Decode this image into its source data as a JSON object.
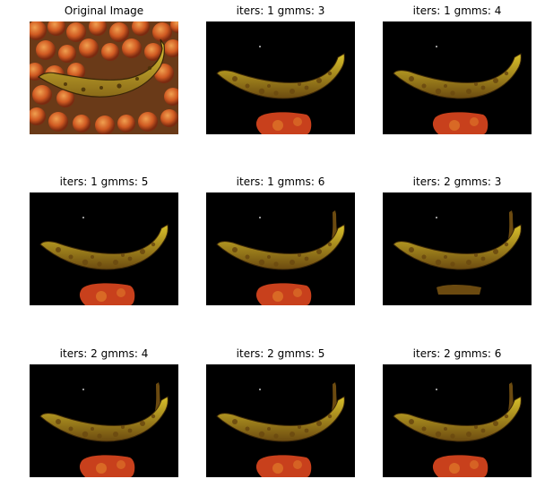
{
  "figure": {
    "panels": [
      {
        "title": "Original Image",
        "kind": "original"
      },
      {
        "title": "iters: 1 gmms: 3",
        "kind": "segmented",
        "stem": false,
        "red_base": true
      },
      {
        "title": "iters: 1 gmms: 4",
        "kind": "segmented",
        "stem": false,
        "red_base": true
      },
      {
        "title": "iters: 1 gmms: 5",
        "kind": "segmented",
        "stem": false,
        "red_base": true
      },
      {
        "title": "iters: 1 gmms: 6",
        "kind": "segmented",
        "stem": true,
        "red_base": true
      },
      {
        "title": "iters: 2 gmms: 3",
        "kind": "segmented",
        "stem": true,
        "red_base": false
      },
      {
        "title": "iters: 2 gmms: 4",
        "kind": "segmented",
        "stem": true,
        "red_base": true
      },
      {
        "title": "iters: 2 gmms: 5",
        "kind": "segmented",
        "stem": true,
        "red_base": true
      },
      {
        "title": "iters: 2 gmms: 6",
        "kind": "segmented",
        "stem": true,
        "red_base": true
      }
    ],
    "colors": {
      "background_mask": "#000000",
      "banana_yellow": "#d8c02a",
      "banana_brown": "#6b4a10",
      "apple_red": "#c8401c",
      "apple_orange": "#e07a2a"
    }
  }
}
